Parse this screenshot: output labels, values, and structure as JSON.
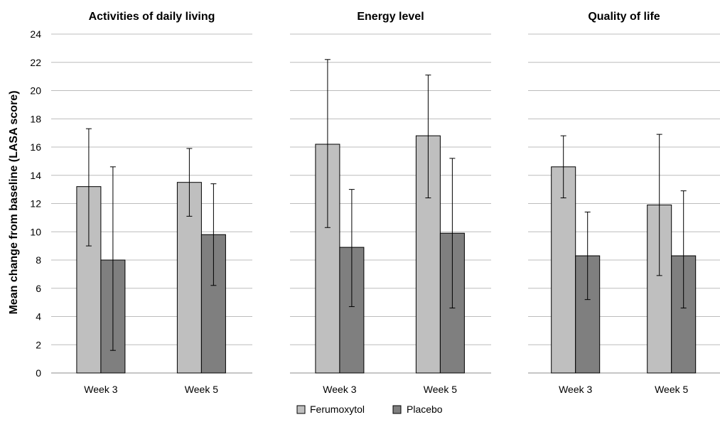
{
  "chart_data": {
    "type": "bar",
    "ylabel": "Mean change from baseline  (LASA score)",
    "ylim": [
      0,
      24
    ],
    "yticks": [
      "0",
      "2",
      "4",
      "6",
      "8",
      "10",
      "12",
      "14",
      "16",
      "18",
      "20",
      "22",
      "24"
    ],
    "grid": true,
    "legend_position": "bottom-center",
    "categories": [
      "Week 3",
      "Week 5"
    ],
    "series": [
      {
        "name": "Ferumoxytol",
        "color": "#bfbfbf"
      },
      {
        "name": "Placebo",
        "color": "#7f7f7f"
      }
    ],
    "panels": [
      {
        "title": "Activities of daily living",
        "values": {
          "Ferumoxytol": [
            13.2,
            13.5
          ],
          "Placebo": [
            8.0,
            9.8
          ]
        },
        "error_low": {
          "Ferumoxytol": [
            9.0,
            11.1
          ],
          "Placebo": [
            1.6,
            6.2
          ]
        },
        "error_high": {
          "Ferumoxytol": [
            17.3,
            15.9
          ],
          "Placebo": [
            14.6,
            13.4
          ]
        }
      },
      {
        "title": "Energy level",
        "values": {
          "Ferumoxytol": [
            16.2,
            16.8
          ],
          "Placebo": [
            8.9,
            9.9
          ]
        },
        "error_low": {
          "Ferumoxytol": [
            10.3,
            12.4
          ],
          "Placebo": [
            4.7,
            4.6
          ]
        },
        "error_high": {
          "Ferumoxytol": [
            22.2,
            21.1
          ],
          "Placebo": [
            13.0,
            15.2
          ]
        }
      },
      {
        "title": "Quality of life",
        "values": {
          "Ferumoxytol": [
            14.6,
            11.9
          ],
          "Placebo": [
            8.3,
            8.3
          ]
        },
        "error_low": {
          "Ferumoxytol": [
            12.4,
            6.9
          ],
          "Placebo": [
            5.2,
            4.6
          ]
        },
        "error_high": {
          "Ferumoxytol": [
            16.8,
            16.9
          ],
          "Placebo": [
            11.4,
            12.9
          ]
        }
      }
    ]
  }
}
